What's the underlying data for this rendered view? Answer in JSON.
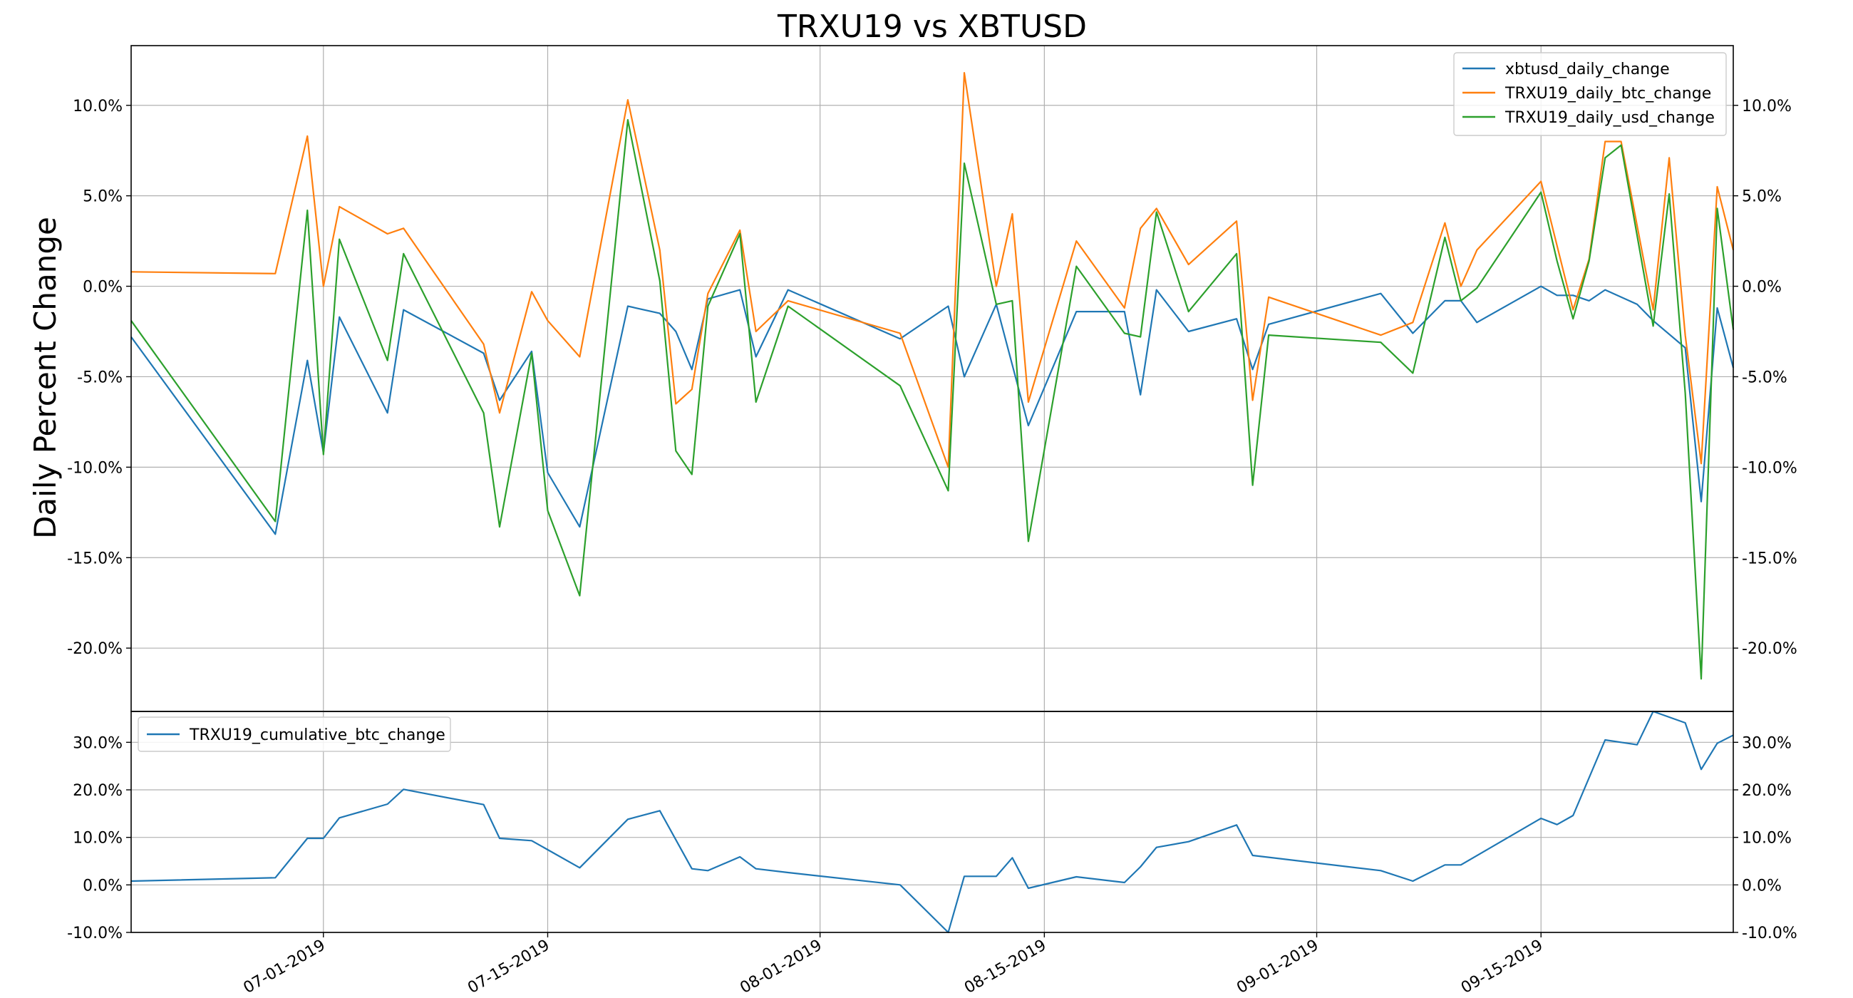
{
  "title": "TRXU19 vs XBTUSD",
  "chart_data": [
    {
      "type": "line",
      "title": "TRXU19 vs XBTUSD",
      "ylabel": "Daily Percent Change",
      "y_unit": "%",
      "ylim": [
        -23.5,
        13.3
      ],
      "yticks": [
        -20,
        -15,
        -10,
        -5,
        0,
        5,
        10
      ],
      "ytick_labels": [
        "-20.0%",
        "-15.0%",
        "-10.0%",
        "-5.0%",
        "0.0%",
        "5.0%",
        "10.0%"
      ],
      "grid": true,
      "legend_position": "top-right",
      "series": [
        {
          "name": "xbtusd_daily_change",
          "color": "#1f77b4",
          "points": [
            [
              "2019-06-19",
              -2.8
            ],
            [
              "2019-06-28",
              -13.7
            ],
            [
              "2019-06-30",
              -4.1
            ],
            [
              "2019-07-01",
              -9.2
            ],
            [
              "2019-07-02",
              -1.7
            ],
            [
              "2019-07-05",
              -7.0
            ],
            [
              "2019-07-06",
              -1.3
            ],
            [
              "2019-07-11",
              -3.7
            ],
            [
              "2019-07-12",
              -6.3
            ],
            [
              "2019-07-14",
              -3.6
            ],
            [
              "2019-07-15",
              -10.3
            ],
            [
              "2019-07-17",
              -13.3
            ],
            [
              "2019-07-20",
              -1.1
            ],
            [
              "2019-07-22",
              -1.5
            ],
            [
              "2019-07-23",
              -2.5
            ],
            [
              "2019-07-24",
              -4.6
            ],
            [
              "2019-07-25",
              -0.7
            ],
            [
              "2019-07-27",
              -0.2
            ],
            [
              "2019-07-28",
              -3.9
            ],
            [
              "2019-07-30",
              -0.2
            ],
            [
              "2019-08-06",
              -2.9
            ],
            [
              "2019-08-09",
              -1.1
            ],
            [
              "2019-08-10",
              -5.0
            ],
            [
              "2019-08-12",
              -1.0
            ],
            [
              "2019-08-14",
              -7.7
            ],
            [
              "2019-08-17",
              -1.4
            ],
            [
              "2019-08-20",
              -1.4
            ],
            [
              "2019-08-21",
              -6.0
            ],
            [
              "2019-08-22",
              -0.2
            ],
            [
              "2019-08-24",
              -2.5
            ],
            [
              "2019-08-27",
              -1.8
            ],
            [
              "2019-08-28",
              -4.6
            ],
            [
              "2019-08-29",
              -2.1
            ],
            [
              "2019-09-05",
              -0.4
            ],
            [
              "2019-09-07",
              -2.6
            ],
            [
              "2019-09-09",
              -0.8
            ],
            [
              "2019-09-10",
              -0.8
            ],
            [
              "2019-09-11",
              -2.0
            ],
            [
              "2019-09-15",
              0.0
            ],
            [
              "2019-09-16",
              -0.5
            ],
            [
              "2019-09-17",
              -0.5
            ],
            [
              "2019-09-18",
              -0.8
            ],
            [
              "2019-09-19",
              -0.2
            ],
            [
              "2019-09-21",
              -1.0
            ],
            [
              "2019-09-22",
              -1.9
            ],
            [
              "2019-09-24",
              -3.4
            ],
            [
              "2019-09-25",
              -11.9
            ],
            [
              "2019-09-26",
              -1.2
            ],
            [
              "2019-09-27",
              -4.5
            ]
          ]
        },
        {
          "name": "TRXU19_daily_btc_change",
          "color": "#ff7f0e",
          "points": [
            [
              "2019-06-19",
              0.8
            ],
            [
              "2019-06-28",
              0.7
            ],
            [
              "2019-06-30",
              8.3
            ],
            [
              "2019-07-01",
              0.0
            ],
            [
              "2019-07-02",
              4.4
            ],
            [
              "2019-07-05",
              2.9
            ],
            [
              "2019-07-06",
              3.2
            ],
            [
              "2019-07-11",
              -3.2
            ],
            [
              "2019-07-12",
              -7.0
            ],
            [
              "2019-07-14",
              -0.3
            ],
            [
              "2019-07-15",
              -1.9
            ],
            [
              "2019-07-17",
              -3.9
            ],
            [
              "2019-07-20",
              10.3
            ],
            [
              "2019-07-22",
              2.0
            ],
            [
              "2019-07-23",
              -6.5
            ],
            [
              "2019-07-24",
              -5.7
            ],
            [
              "2019-07-25",
              -0.4
            ],
            [
              "2019-07-27",
              3.1
            ],
            [
              "2019-07-28",
              -2.5
            ],
            [
              "2019-07-30",
              -0.8
            ],
            [
              "2019-08-06",
              -2.6
            ],
            [
              "2019-08-09",
              -10.0
            ],
            [
              "2019-08-10",
              11.8
            ],
            [
              "2019-08-12",
              0.0
            ],
            [
              "2019-08-13",
              4.0
            ],
            [
              "2019-08-14",
              -6.4
            ],
            [
              "2019-08-17",
              2.5
            ],
            [
              "2019-08-20",
              -1.2
            ],
            [
              "2019-08-21",
              3.2
            ],
            [
              "2019-08-22",
              4.3
            ],
            [
              "2019-08-24",
              1.2
            ],
            [
              "2019-08-27",
              3.6
            ],
            [
              "2019-08-28",
              -6.3
            ],
            [
              "2019-08-29",
              -0.6
            ],
            [
              "2019-09-05",
              -2.7
            ],
            [
              "2019-09-07",
              -2.0
            ],
            [
              "2019-09-09",
              3.5
            ],
            [
              "2019-09-10",
              0.0
            ],
            [
              "2019-09-11",
              2.0
            ],
            [
              "2019-09-15",
              5.8
            ],
            [
              "2019-09-17",
              -1.3
            ],
            [
              "2019-09-18",
              1.5
            ],
            [
              "2019-09-19",
              8.0
            ],
            [
              "2019-09-20",
              8.0
            ],
            [
              "2019-09-22",
              -1.3
            ],
            [
              "2019-09-23",
              7.1
            ],
            [
              "2019-09-24",
              -2.7
            ],
            [
              "2019-09-25",
              -9.8
            ],
            [
              "2019-09-26",
              5.5
            ],
            [
              "2019-09-27",
              2.0
            ]
          ]
        },
        {
          "name": "TRXU19_daily_usd_change",
          "color": "#2ca02c",
          "points": [
            [
              "2019-06-19",
              -1.9
            ],
            [
              "2019-06-28",
              -13.0
            ],
            [
              "2019-06-30",
              4.2
            ],
            [
              "2019-07-01",
              -9.3
            ],
            [
              "2019-07-02",
              2.6
            ],
            [
              "2019-07-05",
              -4.1
            ],
            [
              "2019-07-06",
              1.8
            ],
            [
              "2019-07-11",
              -7.0
            ],
            [
              "2019-07-12",
              -13.3
            ],
            [
              "2019-07-14",
              -3.7
            ],
            [
              "2019-07-15",
              -12.4
            ],
            [
              "2019-07-17",
              -17.1
            ],
            [
              "2019-07-20",
              9.2
            ],
            [
              "2019-07-22",
              0.3
            ],
            [
              "2019-07-23",
              -9.1
            ],
            [
              "2019-07-24",
              -10.4
            ],
            [
              "2019-07-25",
              -1.1
            ],
            [
              "2019-07-27",
              2.9
            ],
            [
              "2019-07-28",
              -6.4
            ],
            [
              "2019-07-30",
              -1.1
            ],
            [
              "2019-08-06",
              -5.5
            ],
            [
              "2019-08-09",
              -11.3
            ],
            [
              "2019-08-10",
              6.8
            ],
            [
              "2019-08-12",
              -1.0
            ],
            [
              "2019-08-13",
              -0.8
            ],
            [
              "2019-08-14",
              -14.1
            ],
            [
              "2019-08-17",
              1.1
            ],
            [
              "2019-08-20",
              -2.6
            ],
            [
              "2019-08-21",
              -2.8
            ],
            [
              "2019-08-22",
              4.1
            ],
            [
              "2019-08-24",
              -1.4
            ],
            [
              "2019-08-27",
              1.8
            ],
            [
              "2019-08-28",
              -11.0
            ],
            [
              "2019-08-29",
              -2.7
            ],
            [
              "2019-09-05",
              -3.1
            ],
            [
              "2019-09-07",
              -4.8
            ],
            [
              "2019-09-09",
              2.7
            ],
            [
              "2019-09-10",
              -0.8
            ],
            [
              "2019-09-11",
              -0.1
            ],
            [
              "2019-09-15",
              5.2
            ],
            [
              "2019-09-16",
              1.4
            ],
            [
              "2019-09-17",
              -1.8
            ],
            [
              "2019-09-18",
              1.4
            ],
            [
              "2019-09-19",
              7.1
            ],
            [
              "2019-09-20",
              7.8
            ],
            [
              "2019-09-22",
              -2.2
            ],
            [
              "2019-09-23",
              5.1
            ],
            [
              "2019-09-24",
              -5.9
            ],
            [
              "2019-09-25",
              -21.7
            ],
            [
              "2019-09-26",
              4.3
            ],
            [
              "2019-09-27",
              -2.4
            ]
          ]
        }
      ]
    },
    {
      "type": "line",
      "ylim": [
        -10,
        36.5
      ],
      "yticks": [
        -10,
        0,
        10,
        20,
        30
      ],
      "ytick_labels": [
        "-10.0%",
        "0.0%",
        "10.0%",
        "20.0%",
        "30.0%"
      ],
      "y_unit": "%",
      "grid": true,
      "legend_position": "top-left",
      "series": [
        {
          "name": "TRXU19_cumulative_btc_change",
          "color": "#1f77b4",
          "points": [
            [
              "2019-06-19",
              0.8
            ],
            [
              "2019-06-28",
              1.5
            ],
            [
              "2019-06-30",
              9.8
            ],
            [
              "2019-07-01",
              9.8
            ],
            [
              "2019-07-02",
              14.1
            ],
            [
              "2019-07-05",
              17.0
            ],
            [
              "2019-07-06",
              20.1
            ],
            [
              "2019-07-11",
              16.9
            ],
            [
              "2019-07-12",
              9.8
            ],
            [
              "2019-07-14",
              9.3
            ],
            [
              "2019-07-17",
              3.6
            ],
            [
              "2019-07-20",
              13.8
            ],
            [
              "2019-07-22",
              15.6
            ],
            [
              "2019-07-24",
              3.4
            ],
            [
              "2019-07-25",
              3.0
            ],
            [
              "2019-07-27",
              5.9
            ],
            [
              "2019-07-28",
              3.4
            ],
            [
              "2019-07-30",
              2.6
            ],
            [
              "2019-08-06",
              0.0
            ],
            [
              "2019-08-09",
              -10.0
            ],
            [
              "2019-08-10",
              1.8
            ],
            [
              "2019-08-12",
              1.8
            ],
            [
              "2019-08-13",
              5.7
            ],
            [
              "2019-08-14",
              -0.7
            ],
            [
              "2019-08-17",
              1.7
            ],
            [
              "2019-08-20",
              0.5
            ],
            [
              "2019-08-21",
              3.8
            ],
            [
              "2019-08-22",
              7.9
            ],
            [
              "2019-08-24",
              9.1
            ],
            [
              "2019-08-27",
              12.6
            ],
            [
              "2019-08-28",
              6.2
            ],
            [
              "2019-09-05",
              3.0
            ],
            [
              "2019-09-07",
              0.8
            ],
            [
              "2019-09-09",
              4.2
            ],
            [
              "2019-09-10",
              4.2
            ],
            [
              "2019-09-15",
              14.0
            ],
            [
              "2019-09-16",
              12.7
            ],
            [
              "2019-09-17",
              14.6
            ],
            [
              "2019-09-19",
              30.5
            ],
            [
              "2019-09-21",
              29.5
            ],
            [
              "2019-09-22",
              36.5
            ],
            [
              "2019-09-24",
              34.1
            ],
            [
              "2019-09-25",
              24.3
            ],
            [
              "2019-09-26",
              29.8
            ],
            [
              "2019-09-27",
              31.5
            ]
          ]
        }
      ]
    }
  ],
  "x_axis": {
    "min": "2019-06-19",
    "max": "2019-09-27",
    "ticks": [
      "2019-07-01",
      "2019-07-15",
      "2019-08-01",
      "2019-08-15",
      "2019-09-01",
      "2019-09-15"
    ],
    "tick_labels": [
      "07-01-2019",
      "07-15-2019",
      "08-01-2019",
      "08-15-2019",
      "09-01-2019",
      "09-15-2019"
    ]
  }
}
